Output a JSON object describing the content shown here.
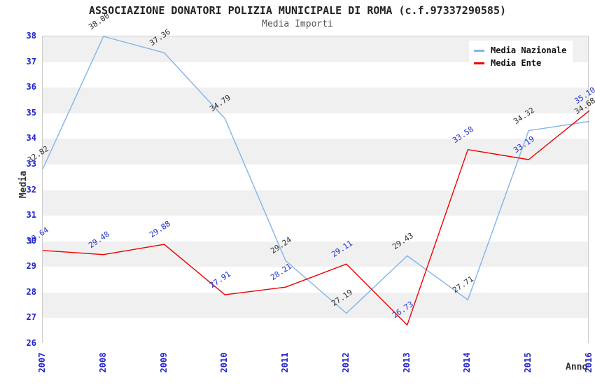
{
  "header": {
    "title": "ASSOCIAZIONE DONATORI POLIZIA MUNICIPALE DI ROMA (c.f.97337290585)",
    "subtitle": "Media Importi"
  },
  "chart_data": {
    "type": "line",
    "x": [
      "2007",
      "2008",
      "2009",
      "2010",
      "2011",
      "2012",
      "2013",
      "2014",
      "2015",
      "2016"
    ],
    "series": [
      {
        "name": "Media Nazionale",
        "color": "#82b4e8",
        "label_color": "#333333",
        "values": [
          32.82,
          38.0,
          37.36,
          34.79,
          29.24,
          27.19,
          29.43,
          27.71,
          34.32,
          34.68
        ]
      },
      {
        "name": "Media Ente",
        "color": "#ee0000",
        "label_color": "#2233cc",
        "values": [
          29.64,
          29.48,
          29.88,
          27.91,
          28.21,
          29.11,
          26.73,
          33.58,
          33.19,
          35.1
        ]
      }
    ],
    "xlabel": "Anno",
    "ylabel": "Media",
    "ylim": [
      26,
      38
    ],
    "y_tick_step": 1,
    "grid": "alternating-bands",
    "band_colors": [
      "#f0f0f0",
      "#ffffff"
    ],
    "tick_color": "#2222cc",
    "legend_position": "top-right",
    "legend_entries": [
      "Media Nazionale",
      "Media Ente"
    ]
  }
}
